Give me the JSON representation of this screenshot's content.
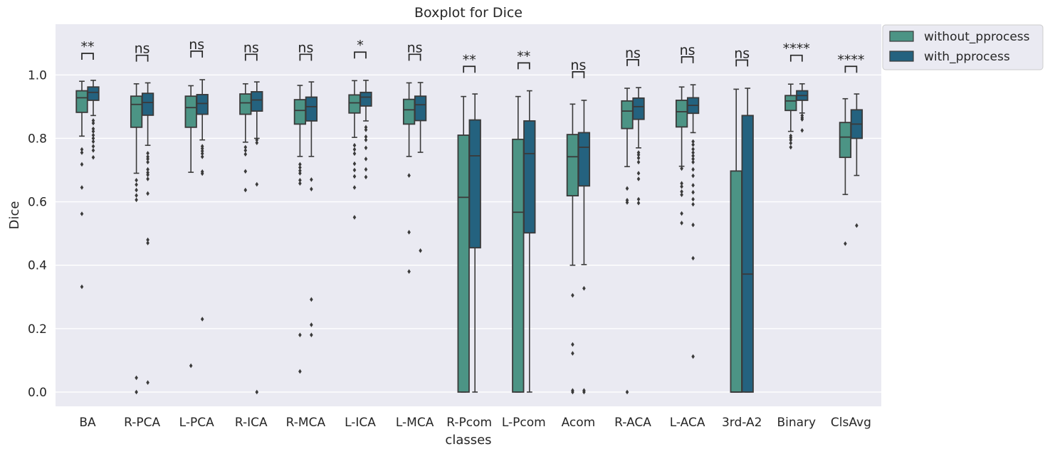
{
  "chart_data": {
    "type": "boxplot",
    "title": "Boxplot for Dice",
    "xlabel": "classes",
    "ylabel": "Dice",
    "ylim": [
      -0.045,
      1.16
    ],
    "yticks": [
      0.0,
      0.2,
      0.4,
      0.6,
      0.8,
      1.0
    ],
    "yticklabels": [
      "0.0",
      "0.2",
      "0.4",
      "0.6",
      "0.8",
      "1.0"
    ],
    "grid": true,
    "legend_position": "outside-top-right",
    "categories": [
      "BA",
      "R-PCA",
      "L-PCA",
      "R-ICA",
      "R-MCA",
      "L-ICA",
      "L-MCA",
      "R-Pcom",
      "L-Pcom",
      "Acom",
      "R-ACA",
      "L-ACA",
      "3rd-A2",
      "Binary",
      "ClsAvg"
    ],
    "series": [
      {
        "name": "without_pprocess",
        "color": "#4c9485",
        "boxes": [
          {
            "whislo": 0.807,
            "q1": 0.882,
            "med": 0.928,
            "q3": 0.95,
            "whishi": 0.98,
            "fliers": [
              0.765,
              0.755,
              0.718,
              0.645,
              0.562,
              0.332
            ]
          },
          {
            "whislo": 0.69,
            "q1": 0.835,
            "med": 0.907,
            "q3": 0.933,
            "whishi": 0.972,
            "fliers": [
              0.668,
              0.654,
              0.637,
              0.62,
              0.606,
              0.045,
              0.0
            ]
          },
          {
            "whislo": 0.693,
            "q1": 0.835,
            "med": 0.897,
            "q3": 0.933,
            "whishi": 0.966,
            "fliers": [
              0.083
            ]
          },
          {
            "whislo": 0.788,
            "q1": 0.876,
            "med": 0.912,
            "q3": 0.94,
            "whishi": 0.972,
            "fliers": [
              0.772,
              0.762,
              0.75,
              0.696,
              0.637
            ]
          },
          {
            "whislo": 0.743,
            "q1": 0.845,
            "med": 0.888,
            "q3": 0.922,
            "whishi": 0.967,
            "fliers": [
              0.718,
              0.708,
              0.698,
              0.69,
              0.668,
              0.658,
              0.18,
              0.065
            ]
          },
          {
            "whislo": 0.803,
            "q1": 0.88,
            "med": 0.912,
            "q3": 0.937,
            "whishi": 0.982,
            "fliers": [
              0.778,
              0.765,
              0.752,
              0.72,
              0.7,
              0.68,
              0.645,
              0.551
            ]
          },
          {
            "whislo": 0.743,
            "q1": 0.845,
            "med": 0.89,
            "q3": 0.923,
            "whishi": 0.975,
            "fliers": [
              0.683,
              0.504,
              0.38
            ]
          },
          {
            "whislo": 0.0,
            "q1": 0.0,
            "med": 0.614,
            "q3": 0.81,
            "whishi": 0.932,
            "fliers": []
          },
          {
            "whislo": 0.0,
            "q1": 0.0,
            "med": 0.567,
            "q3": 0.797,
            "whishi": 0.932,
            "fliers": []
          },
          {
            "whislo": 0.4,
            "q1": 0.619,
            "med": 0.742,
            "q3": 0.812,
            "whishi": 0.908,
            "fliers": [
              0.305,
              0.15,
              0.122,
              0.005,
              0.0
            ]
          },
          {
            "whislo": 0.711,
            "q1": 0.831,
            "med": 0.886,
            "q3": 0.918,
            "whishi": 0.958,
            "fliers": [
              0.642,
              0.605,
              0.598,
              0.0
            ]
          },
          {
            "whislo": 0.712,
            "q1": 0.836,
            "med": 0.884,
            "q3": 0.92,
            "whishi": 0.962,
            "fliers": [
              0.705,
              0.658,
              0.648,
              0.632,
              0.622,
              0.563,
              0.533
            ]
          },
          {
            "whislo": 0.0,
            "q1": 0.0,
            "med": 0.0,
            "q3": 0.697,
            "whishi": 0.955,
            "fliers": []
          },
          {
            "whislo": 0.822,
            "q1": 0.888,
            "med": 0.918,
            "q3": 0.935,
            "whishi": 0.971,
            "fliers": [
              0.808,
              0.802,
              0.795,
              0.785,
              0.772
            ]
          },
          {
            "whislo": 0.623,
            "q1": 0.74,
            "med": 0.804,
            "q3": 0.85,
            "whishi": 0.925,
            "fliers": [
              0.468
            ]
          }
        ]
      },
      {
        "name": "with_pprocess",
        "color": "#24627f",
        "boxes": [
          {
            "whislo": 0.872,
            "q1": 0.92,
            "med": 0.945,
            "q3": 0.962,
            "whishi": 0.983,
            "fliers": [
              0.856,
              0.848,
              0.83,
              0.822,
              0.81,
              0.8,
              0.79,
              0.775,
              0.762,
              0.74
            ]
          },
          {
            "whislo": 0.778,
            "q1": 0.873,
            "med": 0.913,
            "q3": 0.942,
            "whishi": 0.975,
            "fliers": [
              0.753,
              0.742,
              0.735,
              0.725,
              0.702,
              0.692,
              0.685,
              0.672,
              0.626,
              0.48,
              0.47,
              0.03
            ]
          },
          {
            "whislo": 0.795,
            "q1": 0.876,
            "med": 0.91,
            "q3": 0.938,
            "whishi": 0.985,
            "fliers": [
              0.775,
              0.768,
              0.76,
              0.752,
              0.742,
              0.695,
              0.689,
              0.23
            ]
          },
          {
            "whislo": 0.8,
            "q1": 0.886,
            "med": 0.921,
            "q3": 0.947,
            "whishi": 0.978,
            "fliers": [
              0.795,
              0.786,
              0.655,
              0.0
            ]
          },
          {
            "whislo": 0.743,
            "q1": 0.855,
            "med": 0.9,
            "q3": 0.93,
            "whishi": 0.978,
            "fliers": [
              0.67,
              0.64,
              0.292,
              0.212,
              0.18
            ]
          },
          {
            "whislo": 0.855,
            "q1": 0.902,
            "med": 0.93,
            "q3": 0.945,
            "whishi": 0.983,
            "fliers": [
              0.835,
              0.827,
              0.805,
              0.795,
              0.77,
              0.735,
              0.702,
              0.678
            ]
          },
          {
            "whislo": 0.756,
            "q1": 0.856,
            "med": 0.906,
            "q3": 0.933,
            "whishi": 0.976,
            "fliers": [
              0.446
            ]
          },
          {
            "whislo": 0.0,
            "q1": 0.455,
            "med": 0.745,
            "q3": 0.858,
            "whishi": 0.94,
            "fliers": []
          },
          {
            "whislo": 0.0,
            "q1": 0.502,
            "med": 0.752,
            "q3": 0.855,
            "whishi": 0.95,
            "fliers": []
          },
          {
            "whislo": 0.402,
            "q1": 0.65,
            "med": 0.772,
            "q3": 0.818,
            "whishi": 0.92,
            "fliers": [
              0.327,
              0.005,
              0.0
            ]
          },
          {
            "whislo": 0.77,
            "q1": 0.86,
            "med": 0.9,
            "q3": 0.927,
            "whishi": 0.96,
            "fliers": [
              0.755,
              0.748,
              0.738,
              0.725,
              0.69,
              0.672,
              0.608,
              0.596
            ]
          },
          {
            "whislo": 0.818,
            "q1": 0.879,
            "med": 0.904,
            "q3": 0.928,
            "whishi": 0.969,
            "fliers": [
              0.79,
              0.78,
              0.766,
              0.755,
              0.745,
              0.735,
              0.725,
              0.702,
              0.682,
              0.652,
              0.63,
              0.608,
              0.592,
              0.527,
              0.422,
              0.112
            ]
          },
          {
            "whislo": 0.0,
            "q1": 0.0,
            "med": 0.372,
            "q3": 0.872,
            "whishi": 0.958,
            "fliers": []
          },
          {
            "whislo": 0.88,
            "q1": 0.92,
            "med": 0.935,
            "q3": 0.95,
            "whishi": 0.972,
            "fliers": [
              0.872,
              0.865,
              0.86,
              0.825
            ]
          },
          {
            "whislo": 0.683,
            "q1": 0.8,
            "med": 0.845,
            "q3": 0.89,
            "whishi": 0.94,
            "fliers": [
              0.525
            ]
          }
        ]
      }
    ],
    "annotations": [
      {
        "category": "BA",
        "text": "**",
        "y": 1.068
      },
      {
        "category": "R-PCA",
        "text": "ns",
        "y": 1.062
      },
      {
        "category": "L-PCA",
        "text": "ns",
        "y": 1.075
      },
      {
        "category": "R-ICA",
        "text": "ns",
        "y": 1.065
      },
      {
        "category": "R-MCA",
        "text": "ns",
        "y": 1.065
      },
      {
        "category": "L-ICA",
        "text": "*",
        "y": 1.072
      },
      {
        "category": "L-MCA",
        "text": "ns",
        "y": 1.065
      },
      {
        "category": "R-Pcom",
        "text": "**",
        "y": 1.027
      },
      {
        "category": "L-Pcom",
        "text": "**",
        "y": 1.038
      },
      {
        "category": "Acom",
        "text": "ns",
        "y": 1.01
      },
      {
        "category": "R-ACA",
        "text": "ns",
        "y": 1.048
      },
      {
        "category": "L-ACA",
        "text": "ns",
        "y": 1.057
      },
      {
        "category": "3rd-A2",
        "text": "ns",
        "y": 1.047
      },
      {
        "category": "Binary",
        "text": "****",
        "y": 1.062
      },
      {
        "category": "ClsAvg",
        "text": "****",
        "y": 1.027
      }
    ]
  }
}
